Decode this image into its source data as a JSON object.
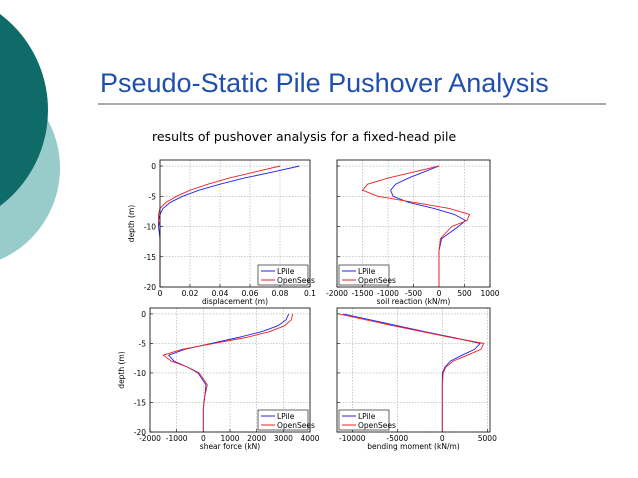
{
  "title": "Pseudo-Static Pile Pushover Analysis",
  "subtitle": "results of pushover analysis for a fixed-head pile",
  "chart_data": [
    {
      "type": "line",
      "xlabel": "displacement (m)",
      "ylabel": "depth (m)",
      "legend": "lower right",
      "grid": true,
      "xlim": [
        0,
        0.1
      ],
      "xticks": [
        0,
        0.02,
        0.04,
        0.06,
        0.08,
        0.1
      ],
      "ylim": [
        -20,
        1
      ],
      "yticks": [
        0,
        -5,
        -10,
        -15,
        -20
      ],
      "ytick_labels": true,
      "series": [
        {
          "name": "LPile",
          "color": "#2222ee",
          "x": [
            0.093,
            0.075,
            0.056,
            0.04,
            0.026,
            0.015,
            0.007,
            0.002,
            0.0,
            -0.001,
            -0.001,
            0,
            0,
            0,
            0,
            0
          ],
          "y": [
            0,
            -1,
            -2,
            -3,
            -4,
            -5,
            -6,
            -7,
            -8,
            -9,
            -10,
            -12,
            -14,
            -16,
            -18,
            -20
          ]
        },
        {
          "name": "OpenSees",
          "color": "#ee2222",
          "x": [
            0.08,
            0.063,
            0.046,
            0.032,
            0.02,
            0.011,
            0.004,
            0.0,
            -0.001,
            -0.001,
            0,
            0,
            0,
            0,
            0,
            0
          ],
          "y": [
            0,
            -1,
            -2,
            -3,
            -4,
            -5,
            -6,
            -7,
            -8,
            -9,
            -10,
            -12,
            -14,
            -16,
            -18,
            -20
          ]
        }
      ]
    },
    {
      "type": "line",
      "xlabel": "soil reaction (kN/m)",
      "legend": "lower left",
      "grid": true,
      "xlim": [
        -2000,
        1000
      ],
      "xticks": [
        -2000,
        -1500,
        -1000,
        -500,
        0,
        500,
        1000
      ],
      "ylim": [
        -20,
        1
      ],
      "yticks": [
        0,
        -5,
        -10,
        -15,
        -20
      ],
      "ytick_labels": false,
      "series": [
        {
          "name": "LPile",
          "color": "#2222ee",
          "x": [
            0,
            -300,
            -600,
            -850,
            -950,
            -900,
            -600,
            -100,
            300,
            520,
            380,
            50,
            0,
            0,
            0,
            0
          ],
          "y": [
            0,
            -1,
            -2,
            -3,
            -4,
            -5,
            -6,
            -7,
            -8,
            -9,
            -10,
            -12,
            -14,
            -16,
            -18,
            -20
          ]
        },
        {
          "name": "OpenSees",
          "color": "#ee2222",
          "x": [
            0,
            -500,
            -1000,
            -1400,
            -1500,
            -1200,
            -500,
            200,
            600,
            550,
            250,
            30,
            0,
            0,
            0,
            0
          ],
          "y": [
            0,
            -1,
            -2,
            -3,
            -4,
            -5,
            -6,
            -7,
            -8,
            -9,
            -10,
            -12,
            -14,
            -16,
            -18,
            -20
          ]
        }
      ]
    },
    {
      "type": "line",
      "xlabel": "shear force (kN)",
      "ylabel": "depth (m)",
      "legend": "lower right",
      "grid": true,
      "xlim": [
        -2000,
        4000
      ],
      "xticks": [
        -2000,
        -1000,
        0,
        1000,
        2000,
        3000,
        4000
      ],
      "ylim": [
        -20,
        1
      ],
      "yticks": [
        0,
        -5,
        -10,
        -15,
        -20
      ],
      "ytick_labels": true,
      "series": [
        {
          "name": "LPile",
          "color": "#2222ee",
          "x": [
            3200,
            3100,
            2800,
            2200,
            1300,
            300,
            -700,
            -1300,
            -1100,
            -600,
            -200,
            100,
            50,
            0,
            0,
            0
          ],
          "y": [
            0,
            -1,
            -2,
            -3,
            -4,
            -5,
            -6,
            -7,
            -8,
            -9,
            -10,
            -12,
            -14,
            -16,
            -18,
            -20
          ]
        },
        {
          "name": "OpenSees",
          "color": "#ee2222",
          "x": [
            3350,
            3300,
            3050,
            2500,
            1600,
            400,
            -800,
            -1500,
            -1200,
            -600,
            -150,
            150,
            50,
            0,
            0,
            0
          ],
          "y": [
            0,
            -1,
            -2,
            -3,
            -4,
            -5,
            -6,
            -7,
            -8,
            -9,
            -10,
            -12,
            -14,
            -16,
            -18,
            -20
          ]
        }
      ]
    },
    {
      "type": "line",
      "xlabel": "bending moment (kN/m)",
      "legend": "lower left",
      "grid": true,
      "xlim": [
        -11700,
        5300
      ],
      "xticks": [
        -10000,
        -5000,
        0,
        5000
      ],
      "ylim": [
        -20,
        1
      ],
      "yticks": [
        0,
        -5,
        -10,
        -15,
        -20
      ],
      "ytick_labels": false,
      "series": [
        {
          "name": "LPile",
          "color": "#2222ee",
          "x": [
            -11000,
            -8000,
            -5000,
            -2000,
            1200,
            4200,
            3600,
            2200,
            900,
            300,
            0,
            0,
            0,
            0,
            0,
            0
          ],
          "y": [
            0,
            -1,
            -2,
            -3,
            -4,
            -5,
            -6,
            -7,
            -8,
            -9,
            -10,
            -12,
            -14,
            -16,
            -18,
            -20
          ]
        },
        {
          "name": "OpenSees",
          "color": "#ee2222",
          "x": [
            -11500,
            -8500,
            -5500,
            -2300,
            1000,
            4600,
            4300,
            2800,
            1200,
            400,
            100,
            0,
            0,
            0,
            0,
            0
          ],
          "y": [
            0,
            -1,
            -2,
            -3,
            -4,
            -5,
            -6,
            -7,
            -8,
            -9,
            -10,
            -12,
            -14,
            -16,
            -18,
            -20
          ]
        }
      ]
    }
  ]
}
